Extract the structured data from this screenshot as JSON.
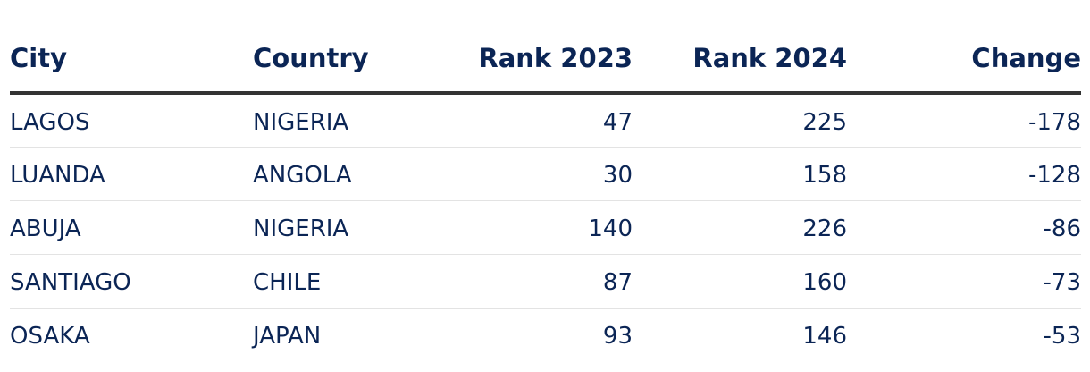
{
  "chart_data": {
    "type": "table",
    "columns": [
      "City",
      "Country",
      "Rank 2023",
      "Rank 2024",
      "Change"
    ],
    "rows": [
      {
        "city": "LAGOS",
        "country": "NIGERIA",
        "rank_2023": "47",
        "rank_2024": "225",
        "change": "-178"
      },
      {
        "city": "LUANDA",
        "country": "ANGOLA",
        "rank_2023": "30",
        "rank_2024": "158",
        "change": "-128"
      },
      {
        "city": "ABUJA",
        "country": "NIGERIA",
        "rank_2023": "140",
        "rank_2024": "226",
        "change": "-86"
      },
      {
        "city": "SANTIAGO",
        "country": "CHILE",
        "rank_2023": "87",
        "rank_2024": "160",
        "change": "-73"
      },
      {
        "city": "OSAKA",
        "country": "JAPAN",
        "rank_2023": "93",
        "rank_2024": "146",
        "change": "-53"
      }
    ]
  },
  "colors": {
    "text": "#0b2555",
    "header_rule": "#333333",
    "row_rule": "#e3e3e3"
  }
}
